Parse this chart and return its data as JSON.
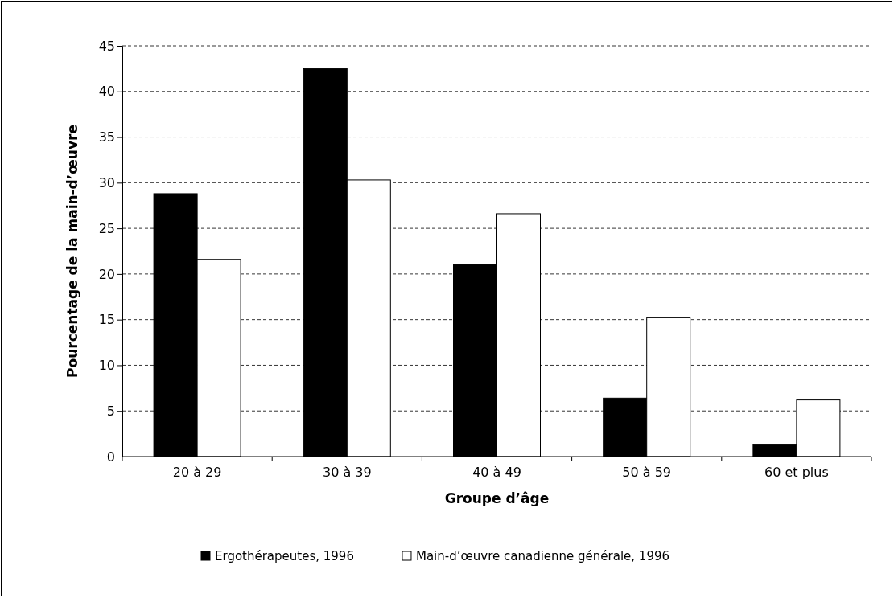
{
  "chart_data": {
    "type": "bar",
    "xlabel": "Groupe d’âge",
    "ylabel": "Pourcentage de la main-d’œuvre",
    "categories": [
      "20 à 29",
      "30 à 39",
      "40 à 49",
      "50 à 59",
      "60 et plus"
    ],
    "series": [
      {
        "name": "Ergothérapeutes, 1996",
        "color": "#000000",
        "values": [
          28.8,
          42.5,
          21.0,
          6.4,
          1.3
        ]
      },
      {
        "name": "Main-d’œuvre canadienne générale, 1996",
        "color": "#ffffff",
        "values": [
          21.6,
          30.3,
          26.6,
          15.2,
          6.2
        ]
      }
    ],
    "ylim": [
      0,
      45
    ],
    "yticks": [
      0,
      5,
      10,
      15,
      20,
      25,
      30,
      35,
      40,
      45
    ],
    "grid": "y",
    "legend": "bottom"
  }
}
